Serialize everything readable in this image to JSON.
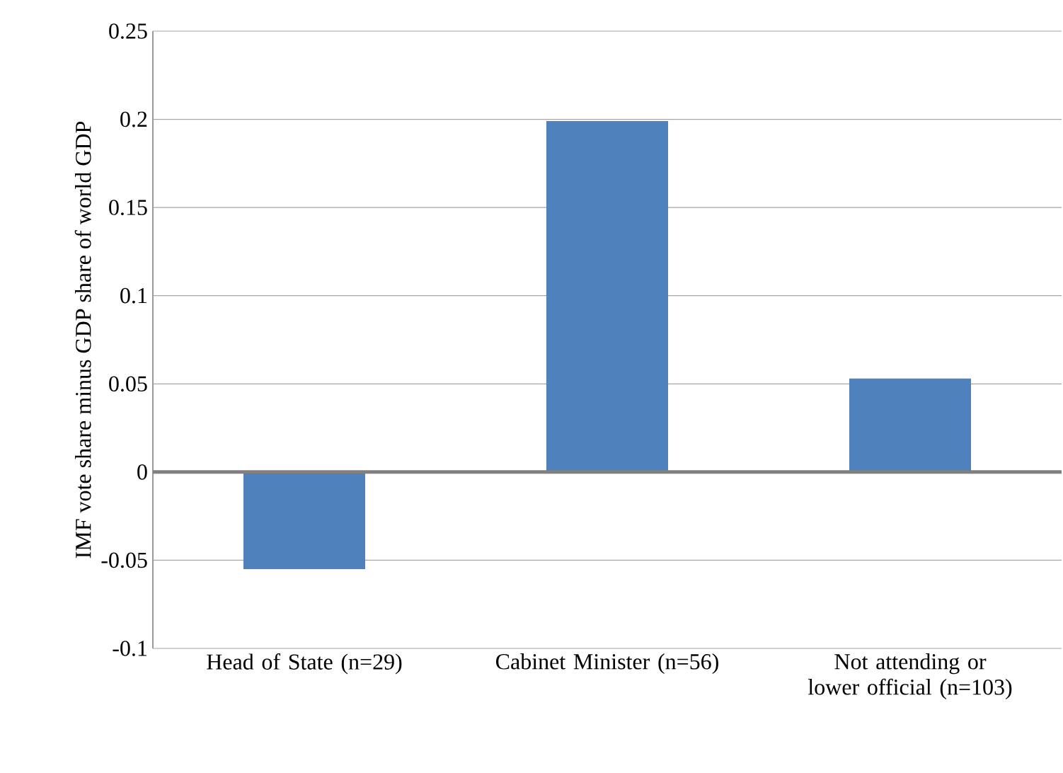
{
  "chart_data": {
    "type": "bar",
    "ylabel": "IMF vote share minus GDP share of world GDP",
    "categories": [
      "Head of State (n=29)",
      "Cabinet Minister (n=56)",
      "Not attending or lower official (n=103)"
    ],
    "values": [
      -0.055,
      0.199,
      0.053
    ],
    "color": "#4f81bd",
    "ylim": [
      -0.1,
      0.25
    ],
    "yticks": [
      -0.1,
      -0.05,
      0,
      0.05,
      0.1,
      0.15,
      0.2,
      0.25
    ],
    "grid": "y"
  }
}
